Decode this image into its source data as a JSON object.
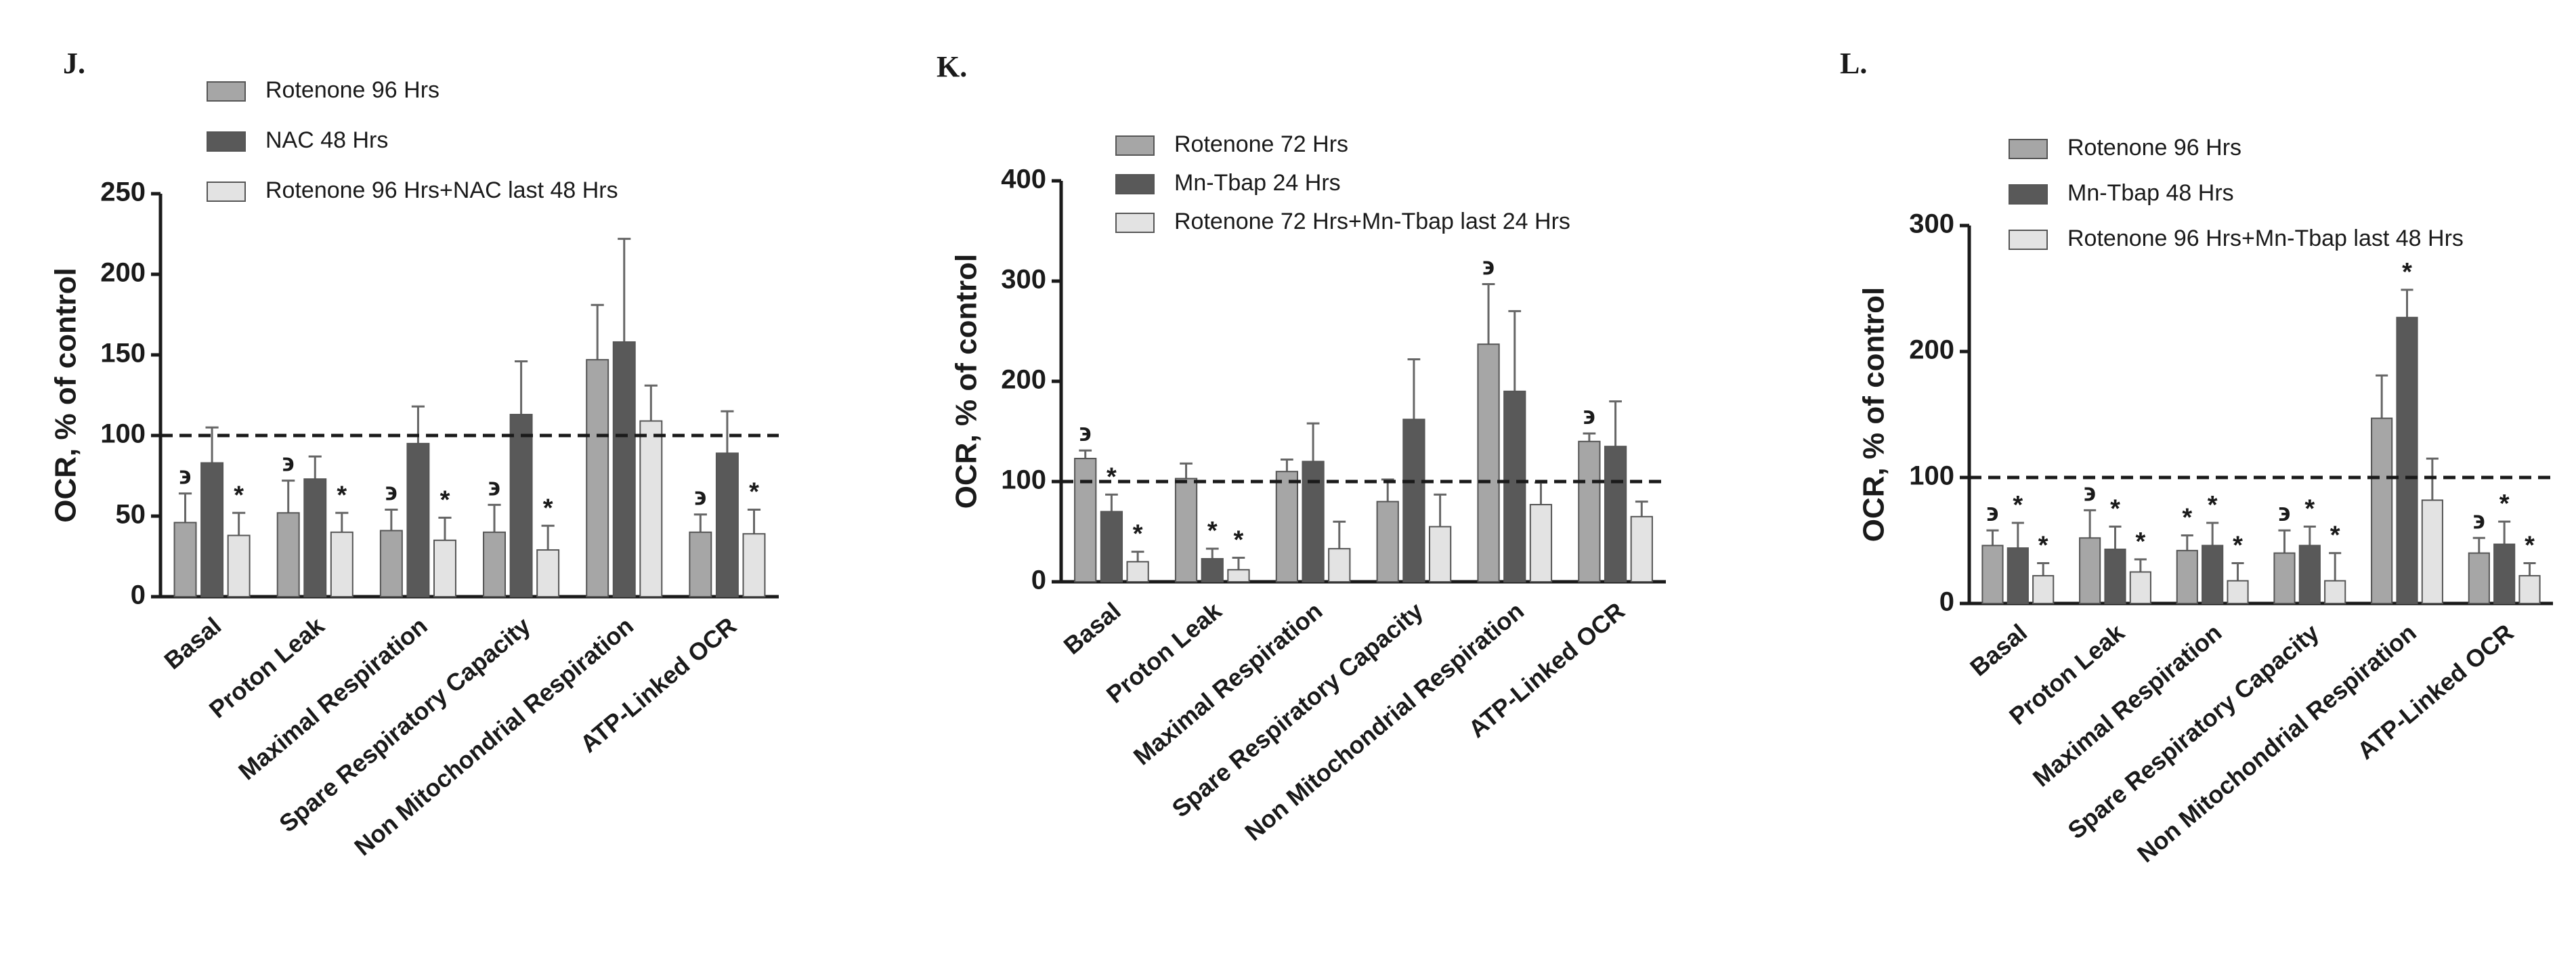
{
  "chart_data": [
    {
      "type": "bar",
      "panel_label": "J.",
      "ylabel": "OCR, % of control",
      "categories": [
        "Basal",
        "Proton Leak",
        "Maximal Respiration",
        "Spare Respiratory Capacity",
        "Non Mitochondrial Respiration",
        "ATP-Linked OCR"
      ],
      "series": [
        {
          "name": "Rotenone 96 Hrs",
          "color": "#a6a6a6",
          "values": [
            46,
            52,
            41,
            40,
            147,
            40
          ],
          "errors": [
            18,
            20,
            13,
            17,
            34,
            11
          ],
          "markers": [
            "϶",
            "϶",
            "϶",
            "϶",
            null,
            "϶"
          ]
        },
        {
          "name": "NAC 48 Hrs",
          "color": "#595959",
          "values": [
            83,
            73,
            95,
            113,
            158,
            89
          ],
          "errors": [
            22,
            14,
            23,
            33,
            64,
            26
          ],
          "markers": [
            null,
            null,
            null,
            null,
            null,
            null
          ]
        },
        {
          "name": "Rotenone 96 Hrs+NAC last 48 Hrs",
          "color": "#e3e3e3",
          "values": [
            38,
            40,
            35,
            29,
            109,
            39
          ],
          "errors": [
            14,
            12,
            14,
            15,
            22,
            15
          ],
          "markers": [
            "*",
            "*",
            "*",
            "*",
            null,
            "*"
          ]
        }
      ],
      "ylim": [
        0,
        250
      ],
      "yticks": [
        0,
        50,
        100,
        150,
        200,
        250
      ],
      "reference_line": 100
    },
    {
      "type": "bar",
      "panel_label": "K.",
      "ylabel": "OCR, % of control",
      "categories": [
        "Basal",
        "Proton Leak",
        "Maximal Respiration",
        "Spare Respiratory Capacity",
        "Non Mitochondrial Respiration",
        "ATP-Linked OCR"
      ],
      "series": [
        {
          "name": "Rotenone 72 Hrs",
          "color": "#a6a6a6",
          "values": [
            123,
            103,
            110,
            80,
            237,
            140
          ],
          "errors": [
            8,
            15,
            12,
            22,
            60,
            8
          ],
          "markers": [
            "϶",
            null,
            null,
            null,
            "϶",
            "϶"
          ]
        },
        {
          "name": "Mn-Tbap 24 Hrs",
          "color": "#595959",
          "values": [
            70,
            23,
            120,
            162,
            190,
            135
          ],
          "errors": [
            17,
            10,
            38,
            60,
            80,
            45
          ],
          "markers": [
            "*",
            "*",
            null,
            null,
            null,
            null
          ]
        },
        {
          "name": "Rotenone 72 Hrs+Mn-Tbap last 24 Hrs",
          "color": "#e3e3e3",
          "values": [
            20,
            12,
            33,
            55,
            77,
            65
          ],
          "errors": [
            10,
            12,
            27,
            32,
            22,
            15
          ],
          "markers": [
            "*",
            "*",
            null,
            null,
            null,
            null
          ]
        }
      ],
      "ylim": [
        0,
        400
      ],
      "yticks": [
        0,
        100,
        200,
        300,
        400
      ],
      "reference_line": 100
    },
    {
      "type": "bar",
      "panel_label": "L.",
      "ylabel": "OCR, % of control",
      "categories": [
        "Basal",
        "Proton Leak",
        "Maximal Respiration",
        "Spare Respiratory Capacity",
        "Non Mitochondrial Respiration",
        "ATP-Linked OCR"
      ],
      "series": [
        {
          "name": "Rotenone 96 Hrs",
          "color": "#a6a6a6",
          "values": [
            46,
            52,
            42,
            40,
            147,
            40
          ],
          "errors": [
            12,
            22,
            12,
            18,
            34,
            12
          ],
          "markers": [
            "϶",
            "϶",
            "*",
            "϶",
            null,
            "϶"
          ]
        },
        {
          "name": "Mn-Tbap 48 Hrs",
          "color": "#595959",
          "values": [
            44,
            43,
            46,
            46,
            227,
            47
          ],
          "errors": [
            20,
            18,
            18,
            15,
            22,
            18
          ],
          "markers": [
            "*",
            "*",
            "*",
            "*",
            "*",
            "*"
          ]
        },
        {
          "name": "Rotenone 96 Hrs+Mn-Tbap last 48 Hrs",
          "color": "#e3e3e3",
          "values": [
            22,
            25,
            18,
            18,
            82,
            22
          ],
          "errors": [
            10,
            10,
            14,
            22,
            33,
            10
          ],
          "markers": [
            "*",
            "*",
            "*",
            "*",
            null,
            "*"
          ]
        }
      ],
      "ylim": [
        0,
        300
      ],
      "yticks": [
        0,
        100,
        200,
        300
      ],
      "reference_line": 100
    }
  ]
}
